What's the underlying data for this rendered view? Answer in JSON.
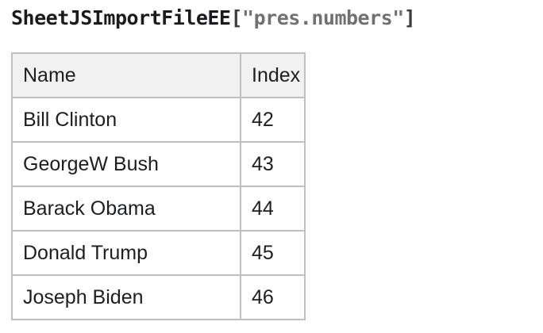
{
  "title": {
    "function_name": "SheetJSImportFileEE",
    "bracket_open": "[",
    "string_arg": "\"pres.numbers\"",
    "bracket_close": "]"
  },
  "table": {
    "columns": [
      "Name",
      "Index"
    ],
    "rows": [
      {
        "name": "Bill Clinton",
        "index": "42"
      },
      {
        "name": "GeorgeW Bush",
        "index": "43"
      },
      {
        "name": "Barack Obama",
        "index": "44"
      },
      {
        "name": "Donald Trump",
        "index": "45"
      },
      {
        "name": "Joseph Biden",
        "index": "46"
      }
    ]
  },
  "colors": {
    "function_name": "#1b1b1d",
    "bracket": "#3d3d3d",
    "string": "#717171",
    "table_border": "#c0c0c0",
    "header_background": "#f1f1f1",
    "body_background": "#ffffff"
  }
}
